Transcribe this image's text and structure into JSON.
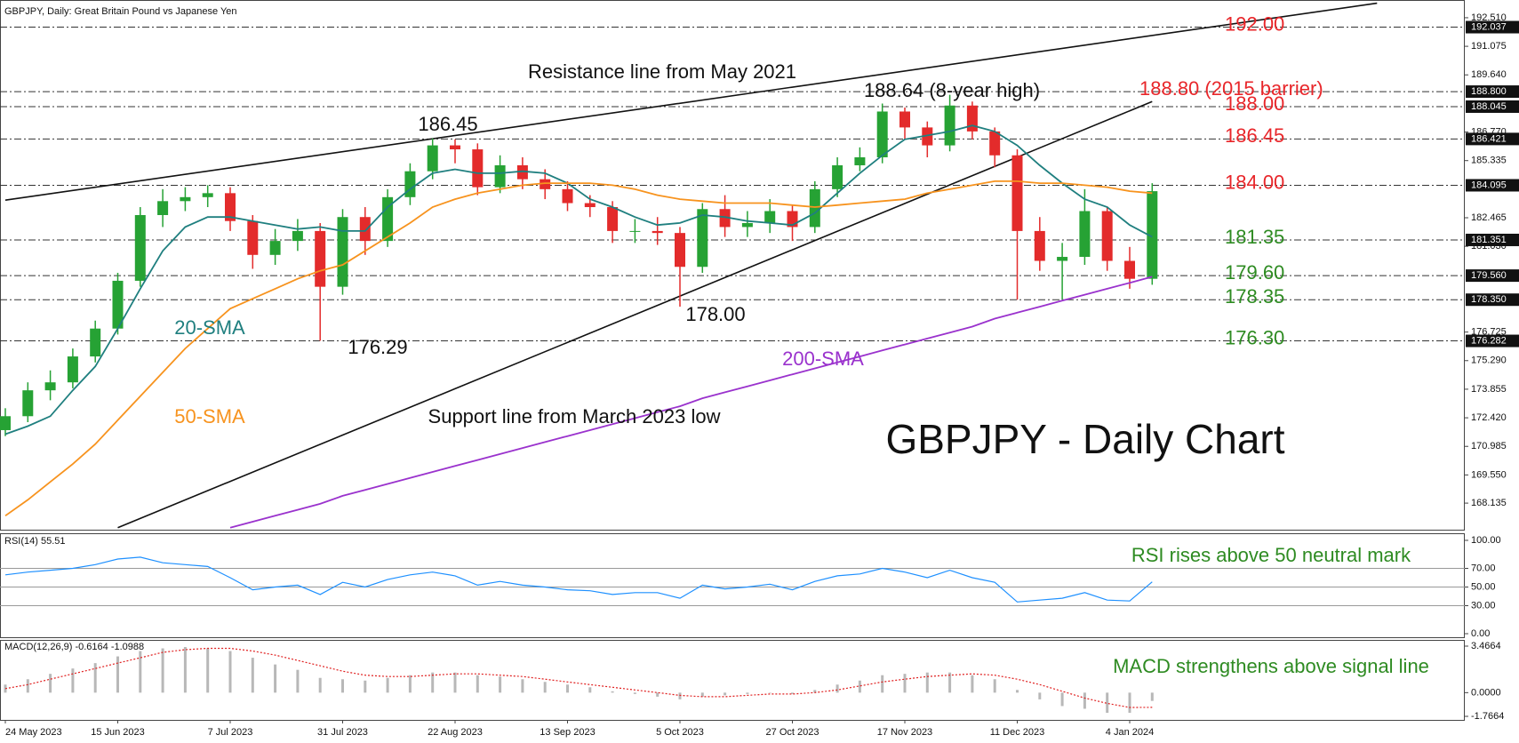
{
  "chart_data": {
    "type": "candlestick",
    "header": "GBPJPY, Daily:  Great Britain Pound vs Japanese Yen",
    "title": "GBPJPY - Daily Chart",
    "categories": [
      "24 May 2023",
      null,
      null,
      null,
      null,
      "15 Jun 2023",
      null,
      null,
      null,
      null,
      "7 Jul 2023",
      null,
      null,
      null,
      null,
      "31 Jul 2023",
      null,
      null,
      null,
      null,
      "22 Aug 2023",
      null,
      null,
      null,
      null,
      "13 Sep 2023",
      null,
      null,
      null,
      null,
      "5 Oct 2023",
      null,
      null,
      null,
      null,
      "27 Oct 2023",
      null,
      null,
      null,
      null,
      "17 Nov 2023",
      null,
      null,
      null,
      null,
      "11 Dec 2023",
      null,
      null,
      null,
      null,
      "4 Jan 2024",
      null
    ],
    "open": [
      171.8,
      172.5,
      173.8,
      174.2,
      175.5,
      176.9,
      179.3,
      182.6,
      183.3,
      183.5,
      183.7,
      182.3,
      180.6,
      181.3,
      181.8,
      179.0,
      182.5,
      181.3,
      183.5,
      184.8,
      186.1,
      185.9,
      184.0,
      185.1,
      184.4,
      183.9,
      183.2,
      183.0,
      181.8,
      181.8,
      181.7,
      180.0,
      182.9,
      182.0,
      182.2,
      182.8,
      182.0,
      183.9,
      185.1,
      185.5,
      187.8,
      187.0,
      186.1,
      188.1,
      186.8,
      185.6,
      181.8,
      180.3,
      180.5,
      182.8,
      180.3,
      179.4
    ],
    "high": [
      172.9,
      174.2,
      174.8,
      175.9,
      177.3,
      179.7,
      183.0,
      183.9,
      184.0,
      184.1,
      184.0,
      182.6,
      181.9,
      182.4,
      182.2,
      182.9,
      183.0,
      183.9,
      185.2,
      186.45,
      186.4,
      186.2,
      185.6,
      185.5,
      184.9,
      184.3,
      183.6,
      183.3,
      182.4,
      182.5,
      182.0,
      183.2,
      183.6,
      182.8,
      183.4,
      183.1,
      184.3,
      185.5,
      186.0,
      188.2,
      188.0,
      187.3,
      188.64,
      188.3,
      187.0,
      185.9,
      182.5,
      181.2,
      183.9,
      183.0,
      181.0,
      184.2
    ],
    "low": [
      171.5,
      172.2,
      173.3,
      173.9,
      175.2,
      176.6,
      179.0,
      182.0,
      182.8,
      183.0,
      181.8,
      179.9,
      180.1,
      180.8,
      176.29,
      178.6,
      180.6,
      181.0,
      183.1,
      184.4,
      185.2,
      183.6,
      183.7,
      183.9,
      183.4,
      182.8,
      182.5,
      181.2,
      181.2,
      181.1,
      178.0,
      179.7,
      181.5,
      181.5,
      181.7,
      181.3,
      181.7,
      183.5,
      184.8,
      185.2,
      186.4,
      185.5,
      185.8,
      186.4,
      185.0,
      178.35,
      179.8,
      178.35,
      180.1,
      179.8,
      178.9,
      179.1
    ],
    "close": [
      172.5,
      173.8,
      174.2,
      175.5,
      176.9,
      179.3,
      182.6,
      183.3,
      183.5,
      183.7,
      182.3,
      180.6,
      181.3,
      181.8,
      179.0,
      182.5,
      181.3,
      183.5,
      184.8,
      186.1,
      185.9,
      184.0,
      185.1,
      184.4,
      183.9,
      183.2,
      183.0,
      181.8,
      181.8,
      181.7,
      180.0,
      182.9,
      182.0,
      182.2,
      182.8,
      182.0,
      183.9,
      185.1,
      185.5,
      187.8,
      187.0,
      186.1,
      188.1,
      186.8,
      185.6,
      181.8,
      180.3,
      180.5,
      182.8,
      180.3,
      179.4,
      183.8
    ],
    "up_color": "#26a234",
    "down_color": "#e32b2b",
    "ylim": [
      166.8,
      193.4
    ],
    "yticks": [
      {
        "value": 192.51,
        "label": "192.510"
      },
      {
        "value": 191.075,
        "label": "191.075"
      },
      {
        "value": 189.64,
        "label": "189.640"
      },
      {
        "value": 186.77,
        "label": "186.770"
      },
      {
        "value": 185.335,
        "label": "185.335"
      },
      {
        "value": 182.465,
        "label": "182.465"
      },
      {
        "value": 181.03,
        "label": "181.030"
      },
      {
        "value": 176.725,
        "label": "176.725"
      },
      {
        "value": 175.29,
        "label": "175.290"
      },
      {
        "value": 173.855,
        "label": "173.855"
      },
      {
        "value": 172.42,
        "label": "172.420"
      },
      {
        "value": 170.985,
        "label": "170.985"
      },
      {
        "value": 169.55,
        "label": "169.550"
      },
      {
        "value": 168.135,
        "label": "168.135"
      }
    ],
    "lines": [
      {
        "name": "20-SMA",
        "color": "#1f7f7f",
        "values": [
          171.6,
          172.0,
          172.5,
          173.8,
          175.0,
          176.9,
          178.9,
          180.8,
          182.0,
          182.5,
          182.5,
          182.3,
          182.1,
          181.9,
          182.0,
          181.8,
          181.8,
          183.0,
          183.9,
          184.7,
          184.9,
          184.7,
          184.7,
          184.8,
          184.7,
          184.2,
          183.4,
          183.0,
          182.5,
          182.1,
          182.2,
          182.6,
          182.5,
          182.3,
          182.2,
          182.1,
          182.7,
          183.7,
          184.7,
          185.6,
          186.4,
          186.6,
          186.8,
          187.1,
          186.8,
          186.1,
          185.1,
          184.2,
          183.4,
          183.0,
          182.1,
          181.5
        ]
      },
      {
        "name": "50-SMA",
        "color": "#f7931e",
        "values": [
          167.5,
          168.3,
          169.2,
          170.1,
          171.1,
          172.3,
          173.5,
          174.7,
          175.9,
          176.9,
          177.9,
          178.4,
          178.9,
          179.4,
          179.8,
          180.1,
          180.8,
          181.5,
          182.2,
          183.0,
          183.4,
          183.7,
          183.9,
          184.1,
          184.2,
          184.2,
          184.2,
          184.1,
          183.9,
          183.6,
          183.4,
          183.3,
          183.2,
          183.2,
          183.2,
          183.1,
          183.0,
          183.1,
          183.2,
          183.3,
          183.4,
          183.7,
          183.9,
          184.1,
          184.3,
          184.3,
          184.2,
          184.2,
          184.1,
          184.0,
          183.8,
          183.7
        ]
      },
      {
        "name": "200-SMA",
        "color": "#9a32cd",
        "values": [
          null,
          null,
          null,
          null,
          null,
          null,
          null,
          null,
          null,
          null,
          166.9,
          167.2,
          167.5,
          167.8,
          168.1,
          168.5,
          168.8,
          169.1,
          169.4,
          169.7,
          170.0,
          170.3,
          170.6,
          170.9,
          171.2,
          171.5,
          171.8,
          172.1,
          172.4,
          172.7,
          173.0,
          173.4,
          173.7,
          174.0,
          174.3,
          174.6,
          174.9,
          175.2,
          175.5,
          175.8,
          176.1,
          176.4,
          176.7,
          177.0,
          177.4,
          177.7,
          178.0,
          178.3,
          178.6,
          178.9,
          179.2,
          179.5
        ]
      }
    ],
    "trendlines": [
      {
        "name": "Resistance line from May 2021",
        "x": [
          0,
          61
        ],
        "values": [
          183.35,
          193.24
        ]
      },
      {
        "name": "Support line from March 2023 low",
        "x": [
          5,
          51
        ],
        "values": [
          166.9,
          188.3
        ]
      }
    ],
    "levels": [
      {
        "price": {
          "value": 192.037,
          "label": "192.037"
        },
        "label": "192.00",
        "color": "#e8262a"
      },
      {
        "price": {
          "value": 188.8,
          "label": "188.800"
        },
        "label": "188.80 (2015 barrier)",
        "color": "#e8262a"
      },
      {
        "price": {
          "value": 188.045,
          "label": "188.045"
        },
        "label": "188.00",
        "color": "#e8262a"
      },
      {
        "price": {
          "value": 186.421,
          "label": "186.421"
        },
        "label": "186.45",
        "color": "#e8262a"
      },
      {
        "price": {
          "value": 184.095,
          "label": "184.095"
        },
        "label": "184.00",
        "color": "#e8262a"
      },
      {
        "price": {
          "value": 181.351,
          "label": "181.351"
        },
        "label": "181.35",
        "color": "#2e8b22"
      },
      {
        "price": {
          "value": 179.56,
          "label": "179.560"
        },
        "label": "179.60",
        "color": "#2e8b22"
      },
      {
        "price": {
          "value": 178.35,
          "label": "178.350"
        },
        "label": "178.35",
        "color": "#2e8b22"
      },
      {
        "price": {
          "value": 176.282,
          "label": "176.282"
        },
        "label": "176.30",
        "color": "#2e8b22"
      }
    ],
    "annotations": {
      "high_186": "186.45",
      "high_188": "188.64 (8-year high)",
      "low_176": "176.29",
      "low_178": "178.00"
    },
    "rsi": {
      "label": "RSI(14) 55.51",
      "note": "RSI rises above 50 neutral mark",
      "color": "#1e90ff",
      "values": [
        63,
        66,
        68,
        70,
        74,
        80,
        82,
        76,
        74,
        72,
        60,
        47,
        50,
        52,
        42,
        55,
        50,
        58,
        63,
        66,
        62,
        52,
        56,
        52,
        50,
        47,
        46,
        42,
        44,
        44,
        38,
        52,
        48,
        50,
        53,
        47,
        56,
        62,
        64,
        70,
        66,
        60,
        68,
        60,
        55,
        34,
        36,
        38,
        44,
        36,
        35,
        55.51
      ],
      "ylim": [
        -3.8,
        107.6
      ],
      "yticks": [
        {
          "value": 100,
          "label": "100.00"
        },
        {
          "value": 70,
          "label": "70.00"
        },
        {
          "value": 50,
          "label": "50.00"
        },
        {
          "value": 30,
          "label": "30.00"
        },
        {
          "value": 0,
          "label": "0.00"
        }
      ]
    },
    "macd": {
      "label": "MACD(12,26,9) -0.6164 -1.0988",
      "note": "MACD strengthens above signal line",
      "histogram_color": "#b8b8b8",
      "signal_color": "#e02020",
      "histogram": [
        0.6,
        1.0,
        1.4,
        1.8,
        2.2,
        2.7,
        3.1,
        3.3,
        3.4,
        3.3,
        3.1,
        2.6,
        2.1,
        1.7,
        1.1,
        1.0,
        0.9,
        1.1,
        1.3,
        1.5,
        1.5,
        1.3,
        1.2,
        1.0,
        0.8,
        0.6,
        0.4,
        0.1,
        -0.1,
        -0.3,
        -0.5,
        -0.3,
        -0.2,
        -0.1,
        0.0,
        -0.1,
        0.2,
        0.6,
        0.9,
        1.3,
        1.4,
        1.5,
        1.5,
        1.3,
        1.0,
        0.2,
        -0.5,
        -1.0,
        -1.2,
        -1.5,
        -1.5,
        -0.6164
      ],
      "signal": [
        0.3,
        0.6,
        1.0,
        1.4,
        1.8,
        2.2,
        2.6,
        3.0,
        3.2,
        3.3,
        3.3,
        3.1,
        2.8,
        2.4,
        2.0,
        1.6,
        1.3,
        1.2,
        1.2,
        1.3,
        1.4,
        1.4,
        1.3,
        1.2,
        1.0,
        0.8,
        0.6,
        0.4,
        0.2,
        0.0,
        -0.2,
        -0.3,
        -0.3,
        -0.2,
        -0.1,
        -0.1,
        0.0,
        0.2,
        0.5,
        0.8,
        1.0,
        1.2,
        1.3,
        1.4,
        1.3,
        1.0,
        0.6,
        0.1,
        -0.4,
        -0.8,
        -1.1,
        -1.0988
      ],
      "ylim": [
        -2.03,
        3.93
      ],
      "yticks": [
        3.4664,
        {
          "value": 0,
          "label": "0.0000"
        },
        -1.7664
      ]
    }
  }
}
